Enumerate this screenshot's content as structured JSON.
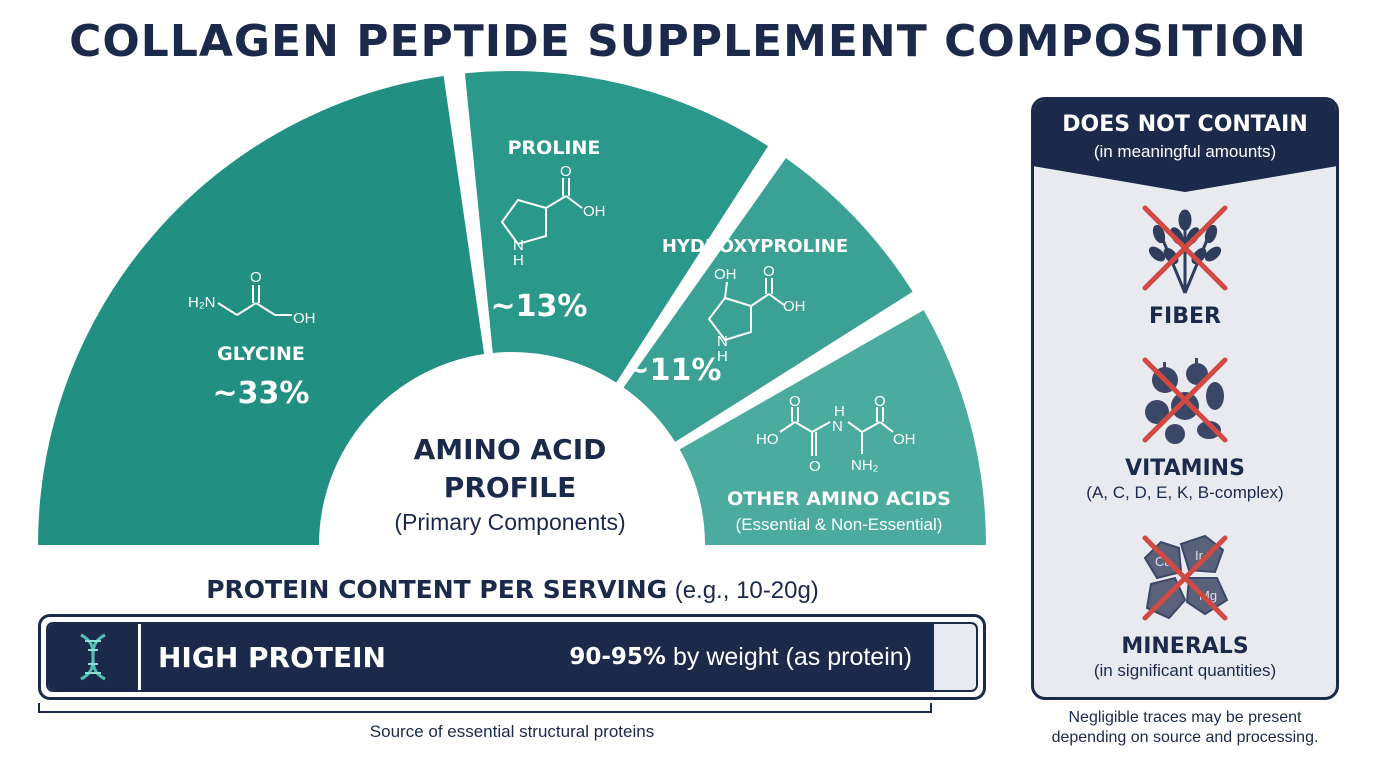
{
  "title": "COLLAGEN PEPTIDE SUPPLEMENT COMPOSITION",
  "amino_profile": {
    "center_title_line1": "AMINO ACID",
    "center_title_line2": "PROFILE",
    "center_subtitle": "(Primary Components)",
    "segments": [
      {
        "name": "GLYCINE",
        "percent": "~33%",
        "share": 33,
        "color": "#218f82",
        "formula": {
          "amine": "H₂N",
          "carbonyl": "O",
          "hydroxyl": "OH"
        }
      },
      {
        "name": "PROLINE",
        "percent": "~13%",
        "share": 13,
        "color": "#2a988a",
        "formula": {
          "carbonyl": "O",
          "hydroxyl": "OH",
          "ring_n": "N",
          "ring_h": "H"
        }
      },
      {
        "name": "HYDROXYPROLINE",
        "percent": "~11%",
        "share": 11,
        "color": "#3aa194",
        "formula": {
          "ring_oh": "OH",
          "carbonyl": "O",
          "hydroxyl": "OH",
          "ring_n": "N",
          "ring_h": "H"
        }
      },
      {
        "name": "OTHER AMINO ACIDS",
        "subtitle": "(Essential & Non-Essential)",
        "color": "#4aab9e",
        "formula": {
          "ho_left": "HO",
          "o_top_left": "O",
          "o_bottom_left": "O",
          "n": "N",
          "h": "H",
          "nh2": "NH₂",
          "o_top_right": "O",
          "oh_right": "OH"
        }
      }
    ]
  },
  "protein": {
    "heading_bold": "PROTEIN CONTENT PER SERVING",
    "heading_light": "(e.g., 10-20g)",
    "bar_label": "HIGH PROTEIN",
    "value_bold": "90-95%",
    "value_text": "by weight (as protein)",
    "fill_fraction": 0.95,
    "icon": "dna-icon",
    "caption": "Source of essential structural proteins"
  },
  "does_not_contain": {
    "title": "DOES NOT CONTAIN",
    "subtitle": "(in meaningful amounts)",
    "items": [
      {
        "label": "FIBER",
        "note": "",
        "icon": "wheat-icon"
      },
      {
        "label": "VITAMINS",
        "note": "(A, C, D, E, K, B-complex)",
        "icon": "fruit-vegetable-icon"
      },
      {
        "label": "MINERALS",
        "note": "(in significant quantities)",
        "icon": "mineral-rocks-icon",
        "rock_symbols": [
          "Ca",
          "Ir",
          "Mg"
        ]
      }
    ],
    "footnote_line1": "Negligible traces may be present",
    "footnote_line2": "depending on source and processing."
  },
  "colors": {
    "navy": "#1b2a4a",
    "teal_dark": "#218f82",
    "teal_light": "#4aab9e",
    "cross_red": "#d04a43",
    "panel_bg": "#e8eaf0"
  }
}
